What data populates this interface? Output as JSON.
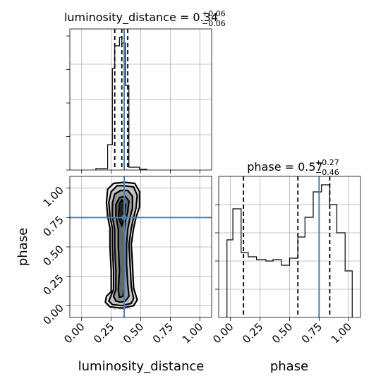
{
  "chart_data": [
    {
      "type": "histogram",
      "panel": "luminosity_distance marginal",
      "title_param": "luminosity_distance",
      "title_value": "0.34",
      "title_plus": "+0.06",
      "title_minus": "−0.06",
      "xlim": [
        -0.1,
        1.1
      ],
      "bins": [
        {
          "x0": 0.12,
          "x1": 0.22,
          "h": 0.01
        },
        {
          "x0": 0.22,
          "x1": 0.26,
          "h": 0.18
        },
        {
          "x0": 0.26,
          "x1": 0.28,
          "h": 0.72
        },
        {
          "x0": 0.28,
          "x1": 0.32,
          "h": 0.88
        },
        {
          "x0": 0.32,
          "x1": 0.34,
          "h": 0.94
        },
        {
          "x0": 0.34,
          "x1": 0.37,
          "h": 0.9
        },
        {
          "x0": 0.37,
          "x1": 0.4,
          "h": 0.6
        },
        {
          "x0": 0.4,
          "x1": 0.49,
          "h": 0.02
        },
        {
          "x0": 0.49,
          "x1": 0.55,
          "h": 0.005
        }
      ],
      "quantile_lines": [
        0.28,
        0.34,
        0.39
      ],
      "truth": 0.36
    },
    {
      "type": "histogram",
      "panel": "phase marginal",
      "title_param": "phase",
      "title_value": "0.57",
      "title_plus": "+0.27",
      "title_minus": "−0.46",
      "xlim": [
        -0.1,
        1.1
      ],
      "xticks": [
        "0.00",
        "0.25",
        "0.50",
        "0.75",
        "1.00"
      ],
      "xlabel": "phase",
      "bins": [
        {
          "x0": -0.03,
          "x1": 0.02,
          "h": 0.55
        },
        {
          "x0": 0.02,
          "x1": 0.09,
          "h": 0.77
        },
        {
          "x0": 0.09,
          "x1": 0.15,
          "h": 0.46
        },
        {
          "x0": 0.15,
          "x1": 0.22,
          "h": 0.43
        },
        {
          "x0": 0.22,
          "x1": 0.3,
          "h": 0.41
        },
        {
          "x0": 0.3,
          "x1": 0.36,
          "h": 0.4
        },
        {
          "x0": 0.36,
          "x1": 0.43,
          "h": 0.41
        },
        {
          "x0": 0.43,
          "x1": 0.5,
          "h": 0.37
        },
        {
          "x0": 0.5,
          "x1": 0.57,
          "h": 0.42
        },
        {
          "x0": 0.57,
          "x1": 0.63,
          "h": 0.57
        },
        {
          "x0": 0.63,
          "x1": 0.7,
          "h": 0.71
        },
        {
          "x0": 0.7,
          "x1": 0.77,
          "h": 0.89
        },
        {
          "x0": 0.77,
          "x1": 0.84,
          "h": 0.94
        },
        {
          "x0": 0.84,
          "x1": 0.9,
          "h": 0.8
        },
        {
          "x0": 0.9,
          "x1": 0.97,
          "h": 0.6
        },
        {
          "x0": 0.97,
          "x1": 1.03,
          "h": 0.33
        }
      ],
      "quantile_lines": [
        0.11,
        0.57,
        0.84
      ],
      "truth": 0.75
    },
    {
      "type": "scatter",
      "panel": "2D posterior",
      "xlabel": "luminosity_distance",
      "ylabel": "phase",
      "xlim": [
        -0.1,
        1.1
      ],
      "ylim": [
        -0.1,
        1.1
      ],
      "xticks": [
        "0.00",
        "0.25",
        "0.50",
        "0.75",
        "1.00"
      ],
      "yticks": [
        "0.00",
        "0.25",
        "0.50",
        "0.75",
        "1.00"
      ],
      "truth": {
        "x": 0.36,
        "y": 0.75
      },
      "scatter_extent": {
        "x": [
          0.17,
          0.52
        ],
        "y": [
          -0.03,
          1.05
        ]
      },
      "contours": [
        [
          [
            0.24,
            -0.01
          ],
          [
            0.2,
            0.03
          ],
          [
            0.21,
            0.08
          ],
          [
            0.25,
            0.12
          ],
          [
            0.25,
            0.3
          ],
          [
            0.24,
            0.5
          ],
          [
            0.24,
            0.66
          ],
          [
            0.22,
            0.76
          ],
          [
            0.21,
            0.88
          ],
          [
            0.22,
            0.99
          ],
          [
            0.27,
            1.04
          ],
          [
            0.36,
            1.05
          ],
          [
            0.45,
            1.04
          ],
          [
            0.49,
            0.97
          ],
          [
            0.49,
            0.84
          ],
          [
            0.46,
            0.75
          ],
          [
            0.44,
            0.66
          ],
          [
            0.42,
            0.52
          ],
          [
            0.43,
            0.35
          ],
          [
            0.44,
            0.15
          ],
          [
            0.47,
            0.05
          ],
          [
            0.44,
            0.0
          ],
          [
            0.34,
            -0.02
          ]
        ],
        [
          [
            0.26,
            0.01
          ],
          [
            0.23,
            0.04
          ],
          [
            0.25,
            0.09
          ],
          [
            0.27,
            0.14
          ],
          [
            0.27,
            0.3
          ],
          [
            0.26,
            0.5
          ],
          [
            0.26,
            0.66
          ],
          [
            0.24,
            0.76
          ],
          [
            0.23,
            0.88
          ],
          [
            0.25,
            0.97
          ],
          [
            0.3,
            1.02
          ],
          [
            0.36,
            1.02
          ],
          [
            0.44,
            1.01
          ],
          [
            0.47,
            0.94
          ],
          [
            0.46,
            0.83
          ],
          [
            0.44,
            0.75
          ],
          [
            0.42,
            0.66
          ],
          [
            0.4,
            0.52
          ],
          [
            0.41,
            0.35
          ],
          [
            0.42,
            0.16
          ],
          [
            0.44,
            0.06
          ],
          [
            0.42,
            0.02
          ],
          [
            0.34,
            0.0
          ]
        ],
        [
          [
            0.29,
            0.04
          ],
          [
            0.27,
            0.08
          ],
          [
            0.29,
            0.14
          ],
          [
            0.29,
            0.3
          ],
          [
            0.28,
            0.5
          ],
          [
            0.28,
            0.65
          ],
          [
            0.26,
            0.76
          ],
          [
            0.26,
            0.87
          ],
          [
            0.28,
            0.95
          ],
          [
            0.33,
            0.98
          ],
          [
            0.39,
            0.98
          ],
          [
            0.43,
            0.93
          ],
          [
            0.43,
            0.83
          ],
          [
            0.41,
            0.75
          ],
          [
            0.39,
            0.65
          ],
          [
            0.38,
            0.52
          ],
          [
            0.38,
            0.35
          ],
          [
            0.39,
            0.18
          ],
          [
            0.4,
            0.08
          ],
          [
            0.37,
            0.04
          ],
          [
            0.33,
            0.03
          ]
        ],
        [
          [
            0.32,
            0.07
          ],
          [
            0.31,
            0.13
          ],
          [
            0.32,
            0.3
          ],
          [
            0.31,
            0.5
          ],
          [
            0.31,
            0.65
          ],
          [
            0.29,
            0.76
          ],
          [
            0.29,
            0.86
          ],
          [
            0.32,
            0.92
          ],
          [
            0.37,
            0.93
          ],
          [
            0.4,
            0.89
          ],
          [
            0.39,
            0.8
          ],
          [
            0.37,
            0.72
          ],
          [
            0.36,
            0.62
          ],
          [
            0.36,
            0.45
          ],
          [
            0.36,
            0.3
          ],
          [
            0.36,
            0.15
          ],
          [
            0.35,
            0.08
          ]
        ]
      ],
      "core": [
        [
          0.31,
          0.75
        ],
        [
          0.32,
          0.87
        ],
        [
          0.34,
          0.9
        ],
        [
          0.37,
          0.86
        ],
        [
          0.36,
          0.74
        ],
        [
          0.34,
          0.68
        ]
      ]
    }
  ]
}
